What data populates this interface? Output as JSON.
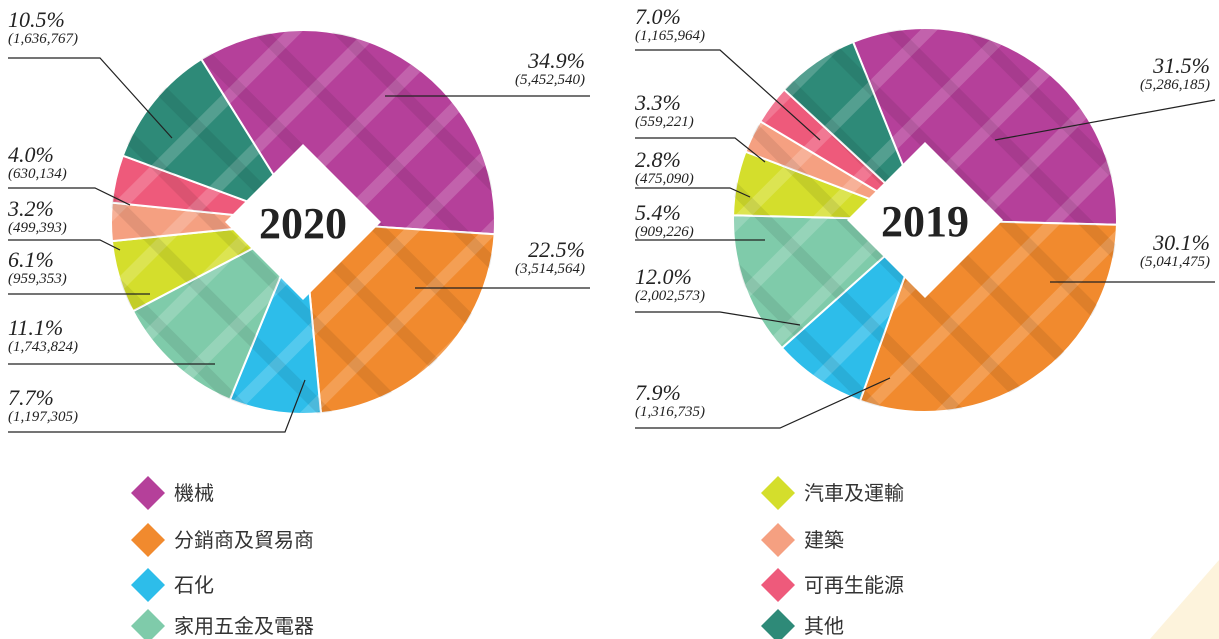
{
  "chart_data": [
    {
      "type": "pie",
      "title": "2020",
      "categories": [
        "機械",
        "分銷商及貿易商",
        "石化",
        "家用五金及電器",
        "汽車及運輸",
        "建築",
        "可再生能源",
        "其他"
      ],
      "colors": [
        "#b5409a",
        "#f18a2e",
        "#2dbdea",
        "#7fcbaa",
        "#d4de2c",
        "#f5a081",
        "#ee5a7b",
        "#2e8a78"
      ],
      "values": [
        34.9,
        22.5,
        7.7,
        11.1,
        6.1,
        3.2,
        4.0,
        10.5
      ],
      "value_labels": [
        "34.9%",
        "22.5%",
        "7.7%",
        "11.1%",
        "6.1%",
        "3.2%",
        "4.0%",
        "10.5%"
      ],
      "amounts": [
        5452540,
        3514564,
        1197305,
        1743824,
        959353,
        499393,
        630134,
        1636767
      ],
      "amount_labels": [
        "(5,452,540)",
        "(3,514,564)",
        "(1,197,305)",
        "(1,743,824)",
        "(959,353)",
        "(499,393)",
        "(630,134)",
        "(1,636,767)"
      ]
    },
    {
      "type": "pie",
      "title": "2019",
      "categories": [
        "機械",
        "分銷商及貿易商",
        "石化",
        "家用五金及電器",
        "汽車及運輸",
        "建築",
        "可再生能源",
        "其他"
      ],
      "colors": [
        "#b5409a",
        "#f18a2e",
        "#2dbdea",
        "#7fcbaa",
        "#d4de2c",
        "#f5a081",
        "#ee5a7b",
        "#2e8a78"
      ],
      "values": [
        31.5,
        30.1,
        7.9,
        12.0,
        5.4,
        2.8,
        3.3,
        7.0
      ],
      "value_labels": [
        "31.5%",
        "30.1%",
        "7.9%",
        "12.0%",
        "5.4%",
        "2.8%",
        "3.3%",
        "7.0%"
      ],
      "amounts": [
        5286185,
        5041475,
        1316735,
        2002573,
        909226,
        475090,
        559221,
        1165964
      ],
      "amount_labels": [
        "(5,286,185)",
        "(5,041,475)",
        "(1,316,735)",
        "(2,002,573)",
        "(909,226)",
        "(475,090)",
        "(559,221)",
        "(1,165,964)"
      ]
    }
  ]
}
